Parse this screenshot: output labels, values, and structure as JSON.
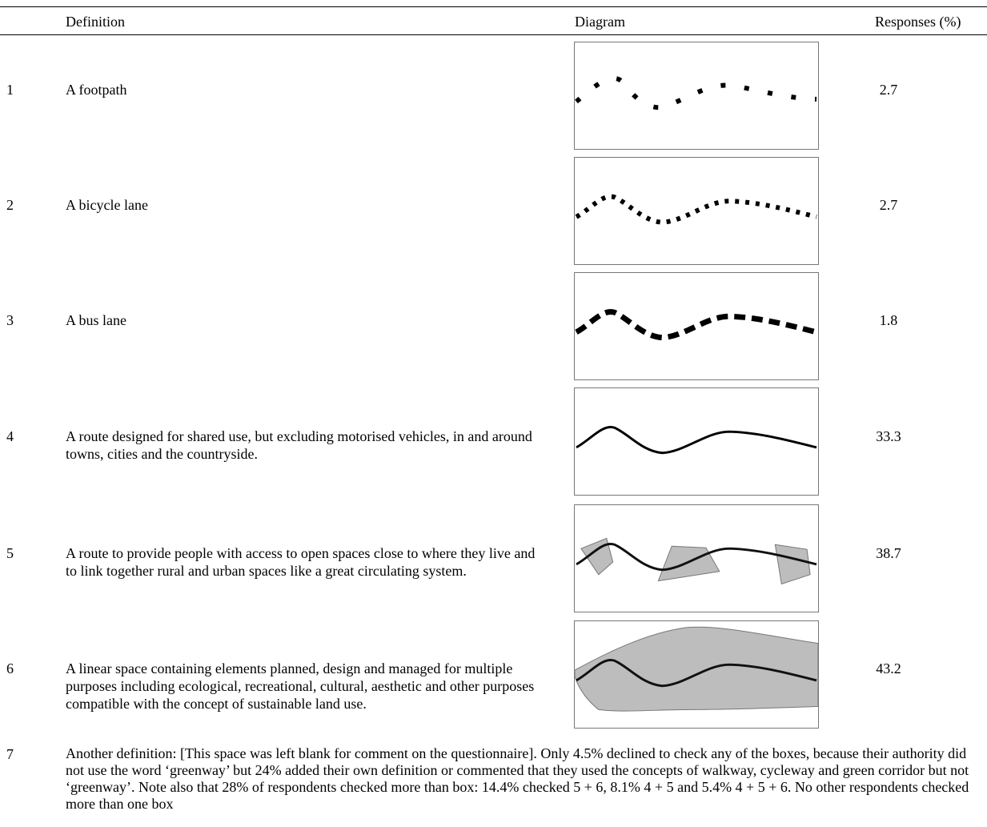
{
  "header": {
    "definition": "Definition",
    "diagram": "Diagram",
    "responses": "Responses (%)"
  },
  "rows": [
    {
      "num": "1",
      "definition": "A footpath",
      "diagram": "dotted-line-icon",
      "response": "2.7"
    },
    {
      "num": "2",
      "definition": "A bicycle lane",
      "diagram": "dense-dotted-line-icon",
      "response": "2.7"
    },
    {
      "num": "3",
      "definition": "A bus lane",
      "diagram": "dashed-line-icon",
      "response": "1.8"
    },
    {
      "num": "4",
      "definition": "A route designed for shared use, but excluding motorised vehicles, in and around towns, cities and the countryside.",
      "diagram": "solid-line-icon",
      "response": "33.3"
    },
    {
      "num": "5",
      "definition": "A route to provide people with access to open spaces close to where they live and to link together rural and urban spaces like a great circulating system.",
      "diagram": "line-with-polygons-icon",
      "response": "38.7"
    },
    {
      "num": "6",
      "definition": "A linear space containing elements planned, design and managed for multiple purposes including ecological, recreational, cultural, aesthetic and other purposes compatible with the concept of sustainable land use.",
      "diagram": "line-in-corridor-icon",
      "response": "43.2"
    }
  ],
  "row7": {
    "num": "7",
    "text": "Another definition: [This space was left blank for comment on the questionnaire]. Only 4.5% declined to check any of the boxes, because their authority did not use the word ‘greenway’ but 24% added their own definition or commented that they used the concepts of walkway, cycleway and green corridor but not ‘greenway’. Note also that 28% of respondents checked more than box: 14.4% checked 5 + 6, 8.1% 4 + 5 and 5.4% 4 + 5 + 6. No other respondents checked more than one box"
  }
}
